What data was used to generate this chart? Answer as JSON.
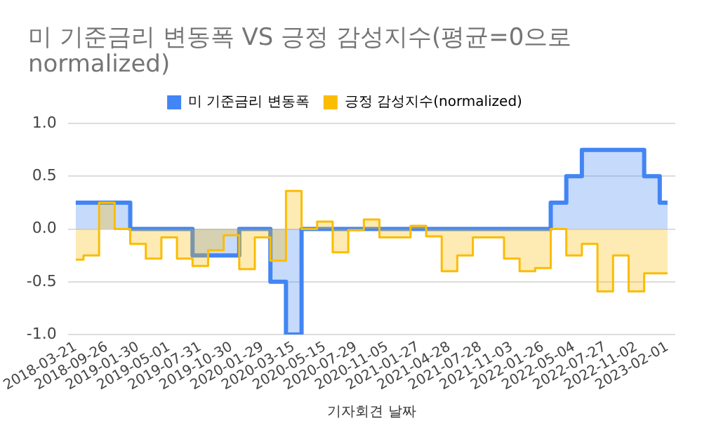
{
  "chart_data": {
    "type": "step",
    "title": "미 기준금리 변동폭 VS 긍정 감성지수(평균=0으로 normalized)",
    "xlabel": "기자회견 날짜",
    "categories": [
      "2018-03-21",
      null,
      "2018-09-26",
      null,
      "2019-01-30",
      null,
      "2019-05-01",
      null,
      "2019-07-31",
      null,
      "2019-10-30",
      null,
      "2020-01-29",
      null,
      "2020-03-15",
      null,
      "2020-05-15",
      null,
      "2020-07-29",
      null,
      "2020-11-05",
      null,
      "2021-01-27",
      null,
      "2021-04-28",
      null,
      "2021-07-28",
      null,
      "2021-11-03",
      null,
      "2022-01-26",
      null,
      "2022-05-04",
      null,
      "2022-07-27",
      null,
      "2022-11-02",
      null,
      "2023-02-01"
    ],
    "series": [
      {
        "name": "미 기준금리 변동폭",
        "color": "#4285f4",
        "values": [
          0.25,
          0.25,
          0.25,
          0.25,
          0,
          0,
          0,
          0,
          -0.25,
          -0.25,
          -0.25,
          0,
          0,
          -0.5,
          -1.0,
          0,
          0,
          0,
          0,
          0,
          0,
          0,
          0,
          0,
          0,
          0,
          0,
          0,
          0,
          0,
          0,
          0.25,
          0.5,
          0.75,
          0.75,
          0.75,
          0.75,
          0.5,
          0.25
        ]
      },
      {
        "name": "긍정 감성지수(normalized)",
        "color": "#fbbc04",
        "values": [
          -0.29,
          -0.25,
          0.25,
          0,
          -0.14,
          -0.28,
          -0.08,
          -0.28,
          -0.35,
          -0.2,
          -0.06,
          -0.38,
          -0.08,
          -0.3,
          0.36,
          0,
          0.07,
          -0.22,
          -0.01,
          0.09,
          -0.08,
          -0.08,
          0.03,
          -0.07,
          -0.4,
          -0.25,
          -0.08,
          -0.08,
          -0.28,
          -0.4,
          -0.37,
          0,
          -0.25,
          -0.14,
          -0.59,
          -0.25,
          -0.59,
          -0.42,
          -0.42
        ]
      }
    ],
    "ylim": [
      -1,
      1
    ],
    "yticks": [
      {
        "value": -1,
        "label": "-1.0"
      },
      {
        "value": -0.5,
        "label": "-0.5"
      },
      {
        "value": 0,
        "label": "0.0"
      },
      {
        "value": 0.5,
        "label": "0.5"
      },
      {
        "value": 1,
        "label": "1.0"
      }
    ],
    "grid": "y",
    "legend": "top"
  }
}
